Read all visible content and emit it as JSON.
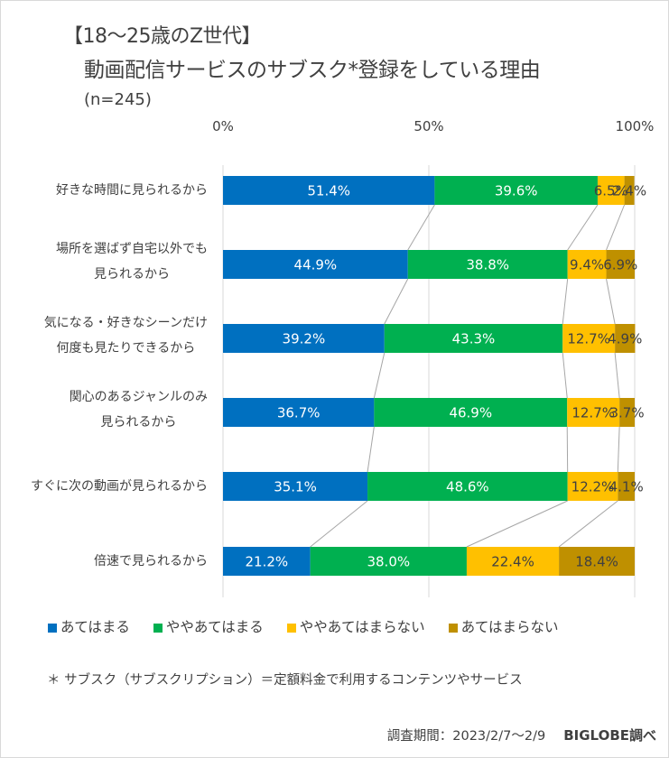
{
  "header": {
    "title_line1": "【18～25歳のZ世代】",
    "title_line2": "動画配信サービスのサブスク*登録をしている理由",
    "sample_size": "(n=245)"
  },
  "colors": {
    "applies": "#0070c0",
    "somewhat_applies": "#00b050",
    "somewhat_not_apply": "#ffc000",
    "not_apply": "#bf9000",
    "gridline": "#d9d9d9",
    "connector": "#a6a6a6",
    "label_light": "#ffffff",
    "label_dark": "#404040"
  },
  "chart_data": {
    "type": "bar",
    "orientation": "horizontal",
    "stacked": "100%",
    "title": "【18～25歳のZ世代】動画配信サービスのサブスク*登録をしている理由",
    "subtitle": "(n=245)",
    "xlabel": "",
    "ylabel": "",
    "xlim": [
      0,
      100
    ],
    "x_ticks": [
      "0%",
      "50%",
      "100%"
    ],
    "x_tick_values": [
      0,
      50,
      100
    ],
    "grid": true,
    "series_lines": true,
    "legend_position": "bottom",
    "categories": [
      [
        "好きな時間に見られるから"
      ],
      [
        "場所を選ばず自宅以外でも",
        "見られるから"
      ],
      [
        "気になる・好きなシーンだけ",
        "何度も見たりできるから"
      ],
      [
        "関心のあるジャンルのみ",
        "見られるから"
      ],
      [
        "すぐに次の動画が見られるから"
      ],
      [
        "倍速で見られるから"
      ]
    ],
    "series": [
      {
        "name": "あてはまる",
        "color": "#0070c0",
        "label_color": "#ffffff",
        "values": [
          51.4,
          44.9,
          39.2,
          36.7,
          35.1,
          21.2
        ],
        "labels": [
          "51.4%",
          "44.9%",
          "39.2%",
          "36.7%",
          "35.1%",
          "21.2%"
        ]
      },
      {
        "name": "ややあてはまる",
        "color": "#00b050",
        "label_color": "#ffffff",
        "values": [
          39.6,
          38.8,
          43.3,
          46.9,
          48.6,
          38.0
        ],
        "labels": [
          "39.6%",
          "38.8%",
          "43.3%",
          "46.9%",
          "48.6%",
          "38.0%"
        ]
      },
      {
        "name": "ややあてはまらない",
        "color": "#ffc000",
        "label_color": "#404040",
        "values": [
          6.5,
          9.4,
          12.7,
          12.7,
          12.2,
          22.4
        ],
        "labels": [
          "6.5%",
          "9.4%",
          "12.7%",
          "12.7%",
          "12.2%",
          "22.4%"
        ]
      },
      {
        "name": "あてはまらない",
        "color": "#bf9000",
        "label_color": "#404040",
        "values": [
          2.4,
          6.9,
          4.9,
          3.7,
          4.1,
          18.4
        ],
        "labels": [
          "2.4%",
          "6.9%",
          "4.9%",
          "3.7%",
          "4.1%",
          "18.4%"
        ]
      }
    ]
  },
  "footnote": "＊ サブスク（サブスクリプション）＝定額料金で利用するコンテンツやサービス",
  "source": {
    "period": "調査期間：2023/2/7～2/9",
    "brand": "BIGLOBE調べ"
  }
}
